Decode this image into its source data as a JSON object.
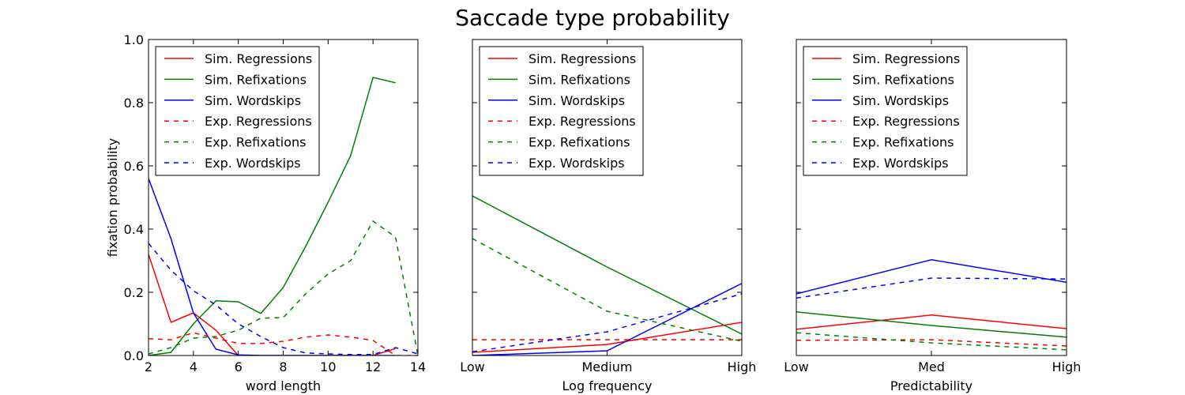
{
  "figure": {
    "title": "Saccade type probability"
  },
  "chart_data": [
    {
      "type": "line",
      "xlabel": "word length",
      "ylabel": "fixation probability",
      "xlim": [
        2,
        14
      ],
      "ylim": [
        0,
        1.0
      ],
      "x_ticks": [
        2,
        4,
        6,
        8,
        10,
        12,
        14
      ],
      "x_tick_labels": [
        "2",
        "4",
        "6",
        "8",
        "10",
        "12",
        "14"
      ],
      "y_ticks": [
        0,
        0.2,
        0.4,
        0.6,
        0.8,
        1.0
      ],
      "y_tick_labels": [
        "0.0",
        "0.2",
        "0.4",
        "0.6",
        "0.8",
        "1.0"
      ],
      "x": [
        2,
        3,
        4,
        5,
        6,
        7,
        8,
        9,
        10,
        11,
        12,
        13,
        14
      ],
      "legend": "top-left",
      "series": [
        {
          "name": "Sim. Regressions",
          "color": "#ff0000",
          "dashed": false,
          "x": [
            2,
            3,
            4,
            5,
            6,
            7,
            8,
            9,
            10,
            11,
            12,
            13
          ],
          "values": [
            0.32,
            0.105,
            0.135,
            0.08,
            0.0,
            0.0,
            0.0,
            0.0,
            0.0,
            0.0,
            0.0,
            0.022
          ]
        },
        {
          "name": "Sim. Refixations",
          "color": "#008000",
          "dashed": false,
          "x": [
            2,
            3,
            4,
            5,
            6,
            7,
            8,
            9,
            10,
            11,
            12,
            13
          ],
          "values": [
            0.0,
            0.01,
            0.1,
            0.173,
            0.17,
            0.133,
            0.215,
            0.345,
            0.485,
            0.632,
            0.88,
            0.863
          ]
        },
        {
          "name": "Sim. Wordskips",
          "color": "#0000ff",
          "dashed": false,
          "x": [
            2,
            3,
            4,
            5,
            6,
            7,
            8,
            9,
            10,
            11,
            12,
            13
          ],
          "values": [
            0.56,
            0.37,
            0.135,
            0.02,
            0.002,
            0.0,
            0.0,
            0.0,
            0.0,
            0.0,
            0.0,
            0.0
          ]
        },
        {
          "name": "Exp. Regressions",
          "color": "#ff0000",
          "dashed": true,
          "x": [
            2,
            3,
            4,
            5,
            6,
            7,
            8,
            9,
            10,
            11,
            12,
            13,
            14
          ],
          "values": [
            0.053,
            0.05,
            0.072,
            0.055,
            0.038,
            0.038,
            0.045,
            0.058,
            0.065,
            0.058,
            0.048,
            0.0,
            0.0
          ]
        },
        {
          "name": "Exp. Refixations",
          "color": "#008000",
          "dashed": true,
          "x": [
            2,
            3,
            4,
            5,
            6,
            7,
            8,
            9,
            10,
            11,
            12,
            13,
            14
          ],
          "values": [
            0.005,
            0.025,
            0.055,
            0.06,
            0.08,
            0.118,
            0.12,
            0.195,
            0.258,
            0.3,
            0.425,
            0.375,
            0.0
          ]
        },
        {
          "name": "Exp. Wordskips",
          "color": "#0000ff",
          "dashed": true,
          "x": [
            2,
            3,
            4,
            5,
            6,
            7,
            8,
            9,
            10,
            11,
            12,
            13,
            14
          ],
          "values": [
            0.355,
            0.27,
            0.205,
            0.16,
            0.1,
            0.06,
            0.025,
            0.008,
            0.005,
            0.003,
            0.003,
            0.025,
            0.005
          ]
        }
      ]
    },
    {
      "type": "line",
      "xlabel": "Log frequency",
      "ylabel": "",
      "categories": [
        "Low",
        "Medium",
        "High"
      ],
      "ylim": [
        0,
        1.0
      ],
      "y_ticks": [
        0,
        0.2,
        0.4,
        0.6,
        0.8,
        1.0
      ],
      "y_tick_labels": [],
      "legend": "top-left",
      "series": [
        {
          "name": "Sim. Regressions",
          "color": "#ff0000",
          "dashed": false,
          "values": [
            0.01,
            0.035,
            0.105
          ]
        },
        {
          "name": "Sim. Refixations",
          "color": "#008000",
          "dashed": false,
          "values": [
            0.505,
            0.28,
            0.068
          ]
        },
        {
          "name": "Sim. Wordskips",
          "color": "#0000ff",
          "dashed": false,
          "values": [
            0.0,
            0.015,
            0.228
          ]
        },
        {
          "name": "Exp. Regressions",
          "color": "#ff0000",
          "dashed": true,
          "values": [
            0.05,
            0.05,
            0.05
          ]
        },
        {
          "name": "Exp. Refixations",
          "color": "#008000",
          "dashed": true,
          "values": [
            0.37,
            0.14,
            0.045
          ]
        },
        {
          "name": "Exp. Wordskips",
          "color": "#0000ff",
          "dashed": true,
          "values": [
            0.012,
            0.075,
            0.195
          ]
        }
      ]
    },
    {
      "type": "line",
      "xlabel": "Predictability",
      "ylabel": "",
      "categories": [
        "Low",
        "Med",
        "High"
      ],
      "ylim": [
        0,
        1.0
      ],
      "y_ticks": [
        0,
        0.2,
        0.4,
        0.6,
        0.8,
        1.0
      ],
      "y_tick_labels": [],
      "legend": "top-left",
      "series": [
        {
          "name": "Sim. Regressions",
          "color": "#ff0000",
          "dashed": false,
          "values": [
            0.083,
            0.128,
            0.085
          ]
        },
        {
          "name": "Sim. Refixations",
          "color": "#008000",
          "dashed": false,
          "values": [
            0.138,
            0.095,
            0.058
          ]
        },
        {
          "name": "Sim. Wordskips",
          "color": "#0000ff",
          "dashed": false,
          "values": [
            0.195,
            0.303,
            0.232
          ]
        },
        {
          "name": "Exp. Regressions",
          "color": "#ff0000",
          "dashed": true,
          "values": [
            0.048,
            0.05,
            0.03
          ]
        },
        {
          "name": "Exp. Refixations",
          "color": "#008000",
          "dashed": true,
          "values": [
            0.072,
            0.04,
            0.018
          ]
        },
        {
          "name": "Exp. Wordskips",
          "color": "#0000ff",
          "dashed": true,
          "values": [
            0.182,
            0.245,
            0.242
          ]
        }
      ]
    }
  ]
}
